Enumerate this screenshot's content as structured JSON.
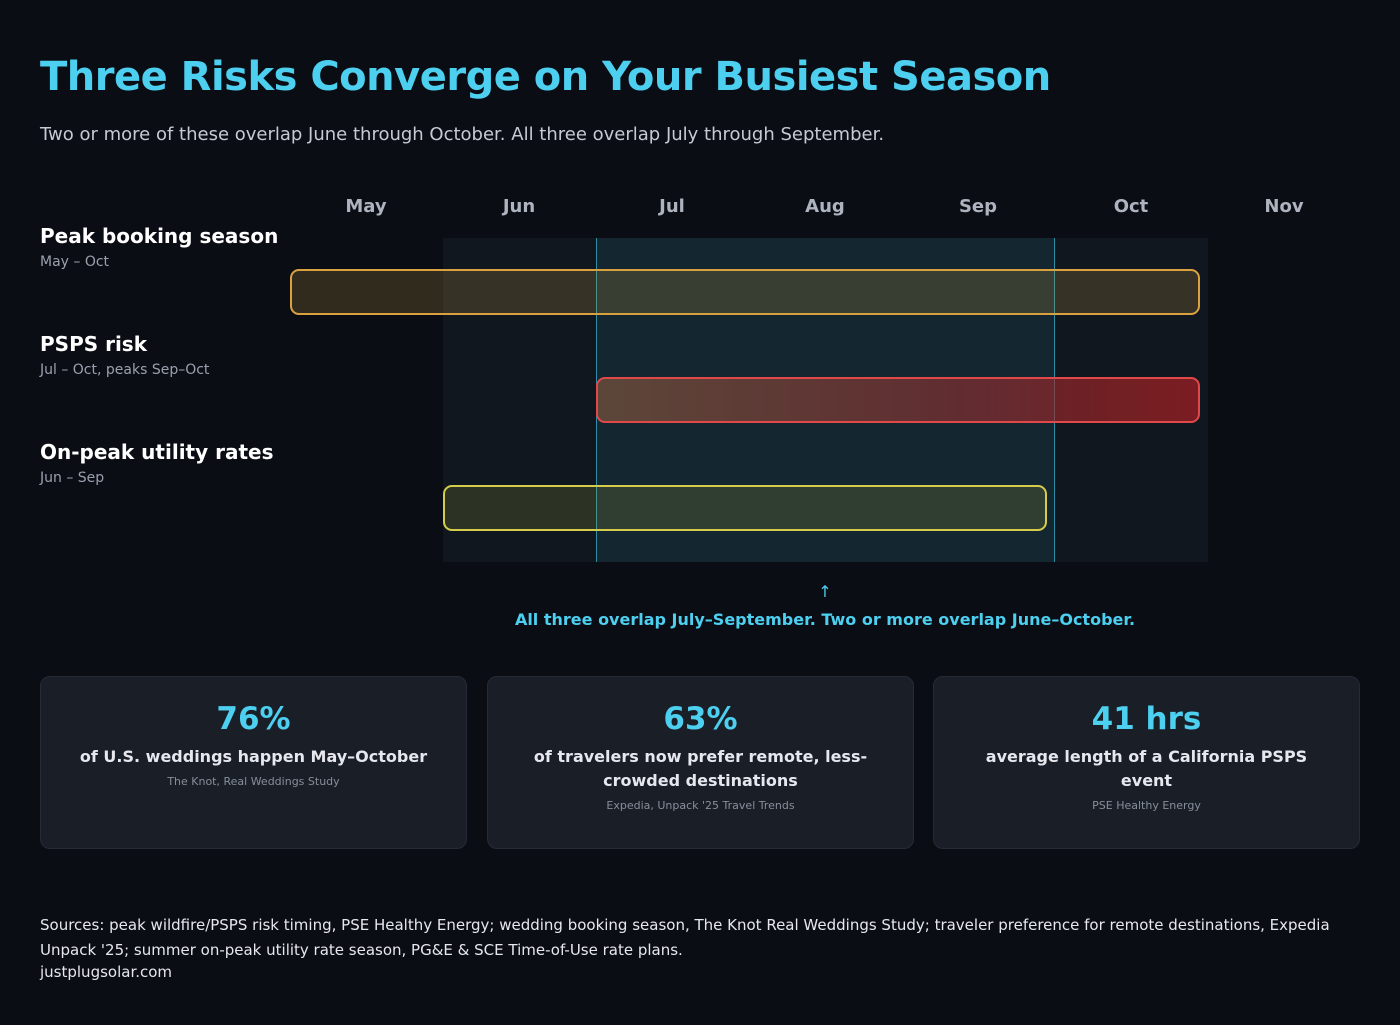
{
  "title": "Three Risks Converge on Your Busiest Season",
  "subtitle": "Two or more of these overlap June through October. All three overlap July through September.",
  "chart_data": {
    "type": "gantt",
    "months": [
      "May",
      "Jun",
      "Jul",
      "Aug",
      "Sep",
      "Oct",
      "Nov"
    ],
    "rows": [
      {
        "label": "Peak booking season",
        "sub": "May – Oct",
        "start": "May",
        "end": "Oct",
        "color": "#d9a23f"
      },
      {
        "label": "PSPS risk",
        "sub": "Jul – Oct, peaks Sep–Oct",
        "start": "Jul",
        "end": "Oct",
        "color": "#e0484a"
      },
      {
        "label": "On-peak utility rates",
        "sub": "Jun – Sep",
        "start": "Jun",
        "end": "Sep",
        "color": "#d4cc4a"
      }
    ],
    "overlap_two_or_more": [
      "Jun",
      "Oct"
    ],
    "overlap_all_three": [
      "Jul",
      "Sep"
    ],
    "arrow": "↑",
    "annotation": "All three overlap July–September. Two or more overlap June–October."
  },
  "stats": [
    {
      "value": "76%",
      "label": "of U.S. weddings happen May–October",
      "source": "The Knot, Real Weddings Study"
    },
    {
      "value": "63%",
      "label": "of travelers now prefer remote, less-crowded destinations",
      "source": "Expedia, Unpack '25 Travel Trends"
    },
    {
      "value": "41 hrs",
      "label": "average length of a California PSPS event",
      "source": "PSE Healthy Energy"
    }
  ],
  "sources": "Sources: peak wildfire/PSPS risk timing, PSE Healthy Energy; wedding booking season, The Knot Real Weddings Study; traveler preference for remote destinations, Expedia Unpack '25; summer on-peak utility rate season, PG&E & SCE Time-of-Use rate plans.",
  "site": "justplugsolar.com",
  "colors": {
    "accent": "#4dcff0",
    "background": "#0a0d14"
  }
}
